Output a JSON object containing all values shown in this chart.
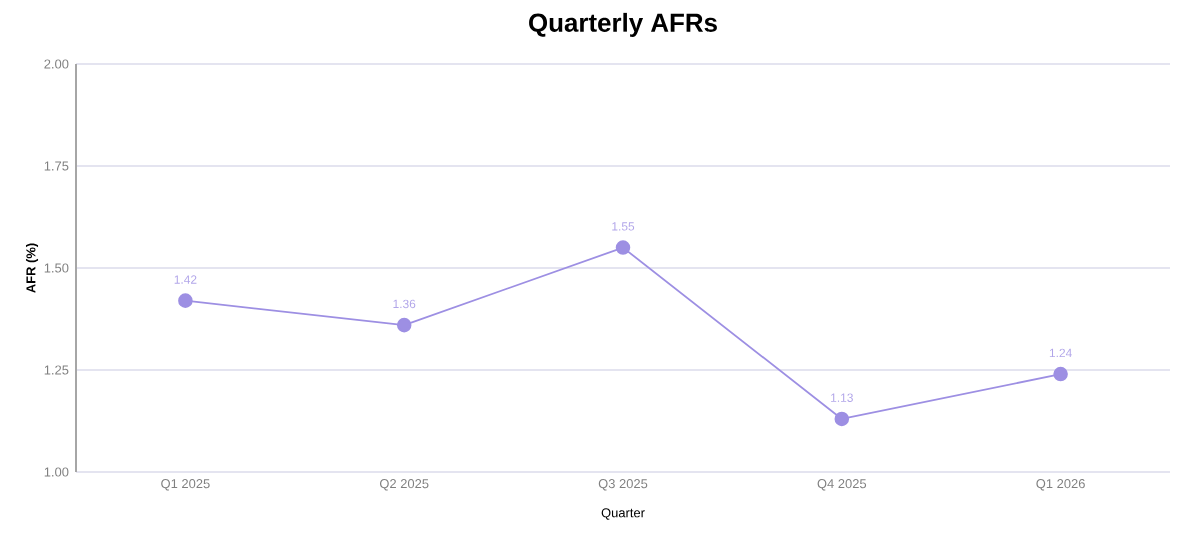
{
  "chart_data": {
    "type": "line",
    "title": "Quarterly AFRs",
    "xlabel": "Quarter",
    "ylabel": "AFR (%)",
    "categories": [
      "Q1 2025",
      "Q2 2025",
      "Q3 2025",
      "Q4 2025",
      "Q1 2026"
    ],
    "series": [
      {
        "color": "#9d8fe3",
        "values": [
          1.42,
          1.36,
          1.55,
          1.13,
          1.24
        ]
      }
    ],
    "ylim": [
      1.0,
      2.0
    ],
    "yticks": [
      {
        "value": 1.0,
        "label": "1.00"
      },
      {
        "value": 1.25,
        "label": "1.25"
      },
      {
        "value": 1.5,
        "label": "1.50"
      },
      {
        "value": 1.75,
        "label": "1.75"
      },
      {
        "value": 2.0,
        "label": "2.00"
      }
    ],
    "grid": "y",
    "marker": "circle",
    "line_style": "solid",
    "data_labels": true
  }
}
